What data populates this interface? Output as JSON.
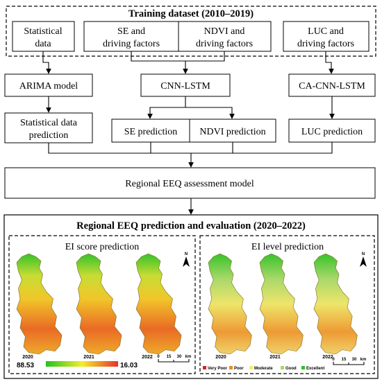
{
  "training": {
    "title": "Training dataset (2010–2019)",
    "inputs": [
      {
        "line1": "Statistical",
        "line2": "data"
      },
      {
        "line1": "SE and",
        "line2": "driving factors"
      },
      {
        "line1": "NDVI and",
        "line2": "driving factors"
      },
      {
        "line1": "LUC and",
        "line2": "driving factors"
      }
    ]
  },
  "models": {
    "arima": "ARIMA model",
    "cnn_lstm": "CNN-LSTM",
    "ca_cnn_lstm": "CA-CNN-LSTM"
  },
  "predictions": {
    "statistical": {
      "line1": "Statistical data",
      "line2": "prediction"
    },
    "se": "SE prediction",
    "ndvi": "NDVI prediction",
    "luc": "LUC prediction"
  },
  "assessment": "Regional EEQ assessment model",
  "evaluation": {
    "title": "Regional EEQ prediction and evaluation (2020–2022)",
    "score_panel": {
      "title": "EI score prediction",
      "years": [
        "2020",
        "2021",
        "2022"
      ],
      "max_value": "88.53",
      "min_value": "16.03",
      "gradient_colors": [
        "#22c21f",
        "#f2ef2a",
        "#e8302a"
      ]
    },
    "level_panel": {
      "title": "EI level prediction",
      "years": [
        "2020",
        "2021",
        "2022"
      ],
      "legend": [
        {
          "label": "Very Poor",
          "color": "#e3201b"
        },
        {
          "label": "Poor",
          "color": "#f08a24"
        },
        {
          "label": "Moderate",
          "color": "#f4ee6a"
        },
        {
          "label": "Good",
          "color": "#a6d96a"
        },
        {
          "label": "Excellent",
          "color": "#29c21f"
        }
      ]
    },
    "scale_labels": [
      "0",
      "15",
      "30",
      "km"
    ],
    "north": "N"
  }
}
